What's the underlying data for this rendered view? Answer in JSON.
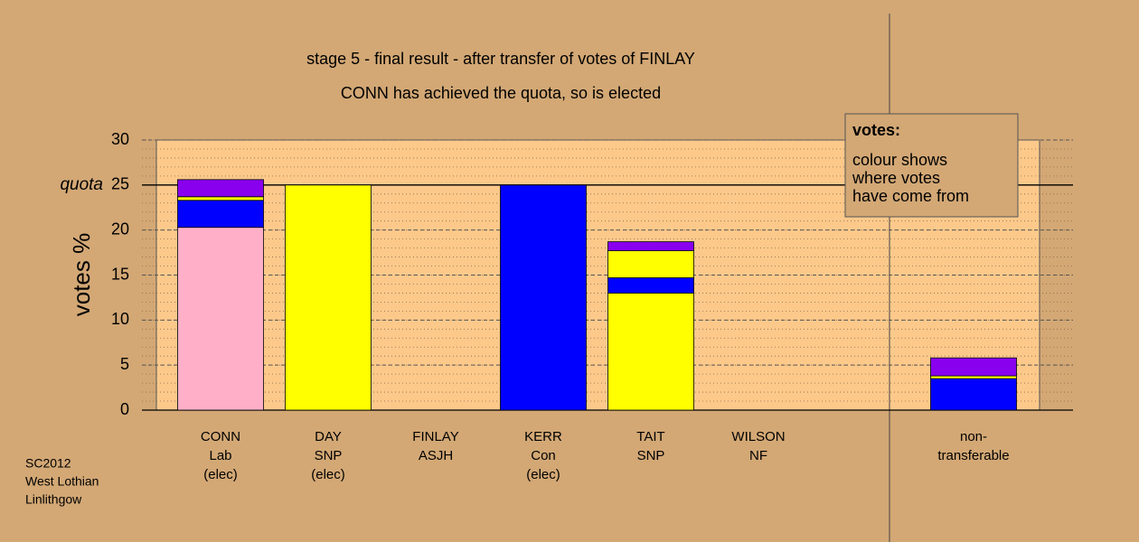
{
  "chart_data": {
    "type": "stacked-bar",
    "title": "stage 5 - final result - after transfer of votes of FINLAY",
    "subtitle": "CONN has achieved the quota, so is elected",
    "ylabel": "votes %",
    "categories": [
      [
        "CONN",
        "Lab",
        "(elec)"
      ],
      [
        "DAY",
        "SNP",
        "(elec)"
      ],
      [
        "FINLAY",
        "ASJH"
      ],
      [
        "KERR",
        "Con",
        "(elec)"
      ],
      [
        "TAIT",
        "SNP"
      ],
      [
        "WILSON",
        "NF"
      ],
      null,
      [
        "non-",
        "transferable"
      ]
    ],
    "series": [
      {
        "color": "#ffb0c8",
        "values": [
          20.3,
          null,
          null,
          null,
          null,
          null,
          null,
          null
        ]
      },
      {
        "color": "#ffff00",
        "values": [
          null,
          25.0,
          null,
          null,
          13.0,
          null,
          null,
          null
        ]
      },
      {
        "color": "#0000ff",
        "values": [
          3.0,
          null,
          null,
          25.0,
          1.7,
          null,
          null,
          3.5
        ]
      },
      {
        "color": "#ffff00",
        "values": [
          0.4,
          null,
          null,
          null,
          3.0,
          null,
          null,
          0.3
        ]
      },
      {
        "color": "#8800ee",
        "values": [
          1.9,
          null,
          null,
          null,
          1.0,
          null,
          null,
          2.0
        ]
      }
    ],
    "ylim": [
      0,
      30
    ],
    "yticks": [
      0,
      5,
      10,
      15,
      20,
      25,
      30
    ],
    "minor_grid_step": 1,
    "quota": {
      "value": 25,
      "label": "quota"
    },
    "note": {
      "heading": "votes:",
      "lines": [
        "colour shows",
        "where votes",
        "have come from"
      ]
    },
    "footnote": [
      "SC2012",
      "West Lothian",
      "Linlithgow"
    ]
  }
}
